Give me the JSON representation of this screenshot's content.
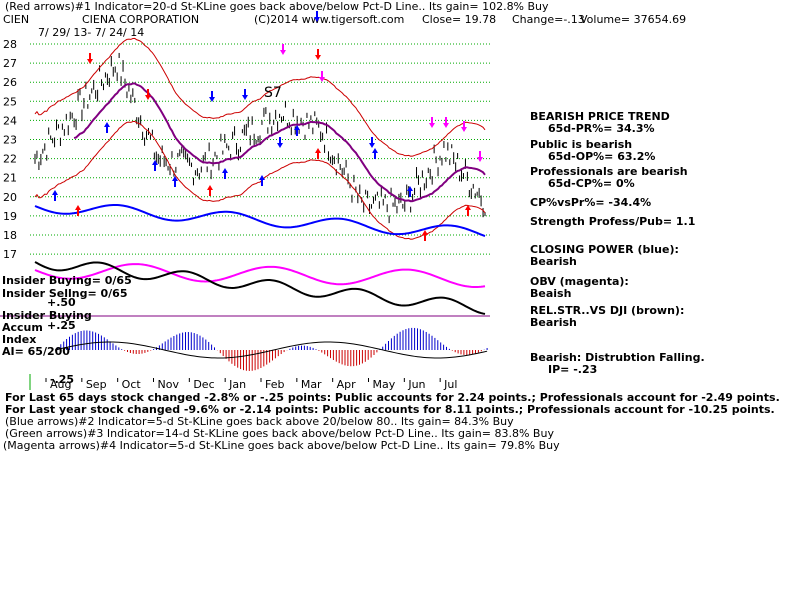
{
  "header": {
    "line1": "(Red arrows)#1 Indicator=20-d St-KLine goes back above/below Pct-D Line.. Its gain= 102.8% Buy",
    "ticker": "CIEN",
    "company": "CIENA CORPORATION",
    "copyright": "(C)2014 www.tigersoft.com",
    "close": "Close=  19.78",
    "change": "Change=-.13",
    "volume": "Volume=  37654.69",
    "date_range": "7/ 29/ 13-  7/ 24/ 14"
  },
  "right_panel": [
    "BEARISH PRICE TREND",
    "65d-PR%= 34.3%",
    "Public is bearish",
    "65d-OP%= 63.2%",
    "Professionals are bearish",
    "65d-CP%= 0%",
    "CP%vsPr%= -34.4%",
    "Strength Profess/Pub= 1.1",
    "CLOSING POWER (blue):",
    "Bearish",
    "OBV (magenta):",
    "Beaish",
    "REL.STR..VS DJI (brown):",
    "Bearish",
    "Bearish: Distrubtion Falling.",
    "IP= -.23"
  ],
  "left_labels": {
    "insider_buying": "Insider Buying= 0/65",
    "insider_selling": "Insider Sellng= 0/65",
    "plus50": "+.50",
    "insider_buying2": "Insider Buying",
    "accum": "Accum",
    "plus25": "+.25",
    "index": "Index",
    "ai": "AI= 65/200",
    "minus25": "-.25"
  },
  "chart_annotation": "S7",
  "footer": [
    "For Last 65 days stock changed -2.8% or -.25 points:  Public accounts for  2.24 points.;  Professionals account for -2.49 points.",
    "For Last year stock changed -9.6% or -2.14 points:  Public accounts for  8.11 points.;  Professionals account for -10.25 points.",
    "(Blue arrows)#2 Indicator=5-d St-KLine goes back above 20/below 80.. Its gain= 84.3% Buy",
    "(Green arrows)#3 Indicator=14-d St-KLine goes back above/below Pct-D Line.. Its gain= 83.8% Buy",
    "(Magenta arrows)#4 Indicator=5-d St-KLine goes back above/below Pct-D Line.. Its gain= 79.8% Buy"
  ],
  "chart_data": {
    "type": "line",
    "title": "CIENA CORPORATION",
    "x_tick_labels": [
      "Aug",
      "Sep",
      "Oct",
      "Nov",
      "Dec",
      "Jan",
      "Feb",
      "Mar",
      "Apr",
      "May",
      "Jun",
      "Jul"
    ],
    "y_tick_labels": [
      "28",
      "27",
      "26",
      "25",
      "24",
      "23",
      "22",
      "21",
      "20",
      "19",
      "18",
      "17"
    ],
    "ylim": [
      16.5,
      28.5
    ],
    "grid": true,
    "colors": {
      "price": "#000000",
      "bands": "#cc0000",
      "moving_average": "#800080",
      "closing_power": "#0000ff",
      "obv": "#ff00ff",
      "accum_positive": "#0000cc",
      "accum_negative": "#cc0000"
    },
    "series": [
      {
        "name": "Price",
        "x": [
          "Aug",
          "Sep",
          "Oct",
          "Nov",
          "Dec",
          "Jan",
          "Feb",
          "Mar",
          "Apr",
          "May",
          "Jun",
          "Jul"
        ],
        "values": [
          22.0,
          24.5,
          27.0,
          22.0,
          21.5,
          23.0,
          24.5,
          23.5,
          19.5,
          19.5,
          22.5,
          19.8
        ]
      }
    ]
  }
}
